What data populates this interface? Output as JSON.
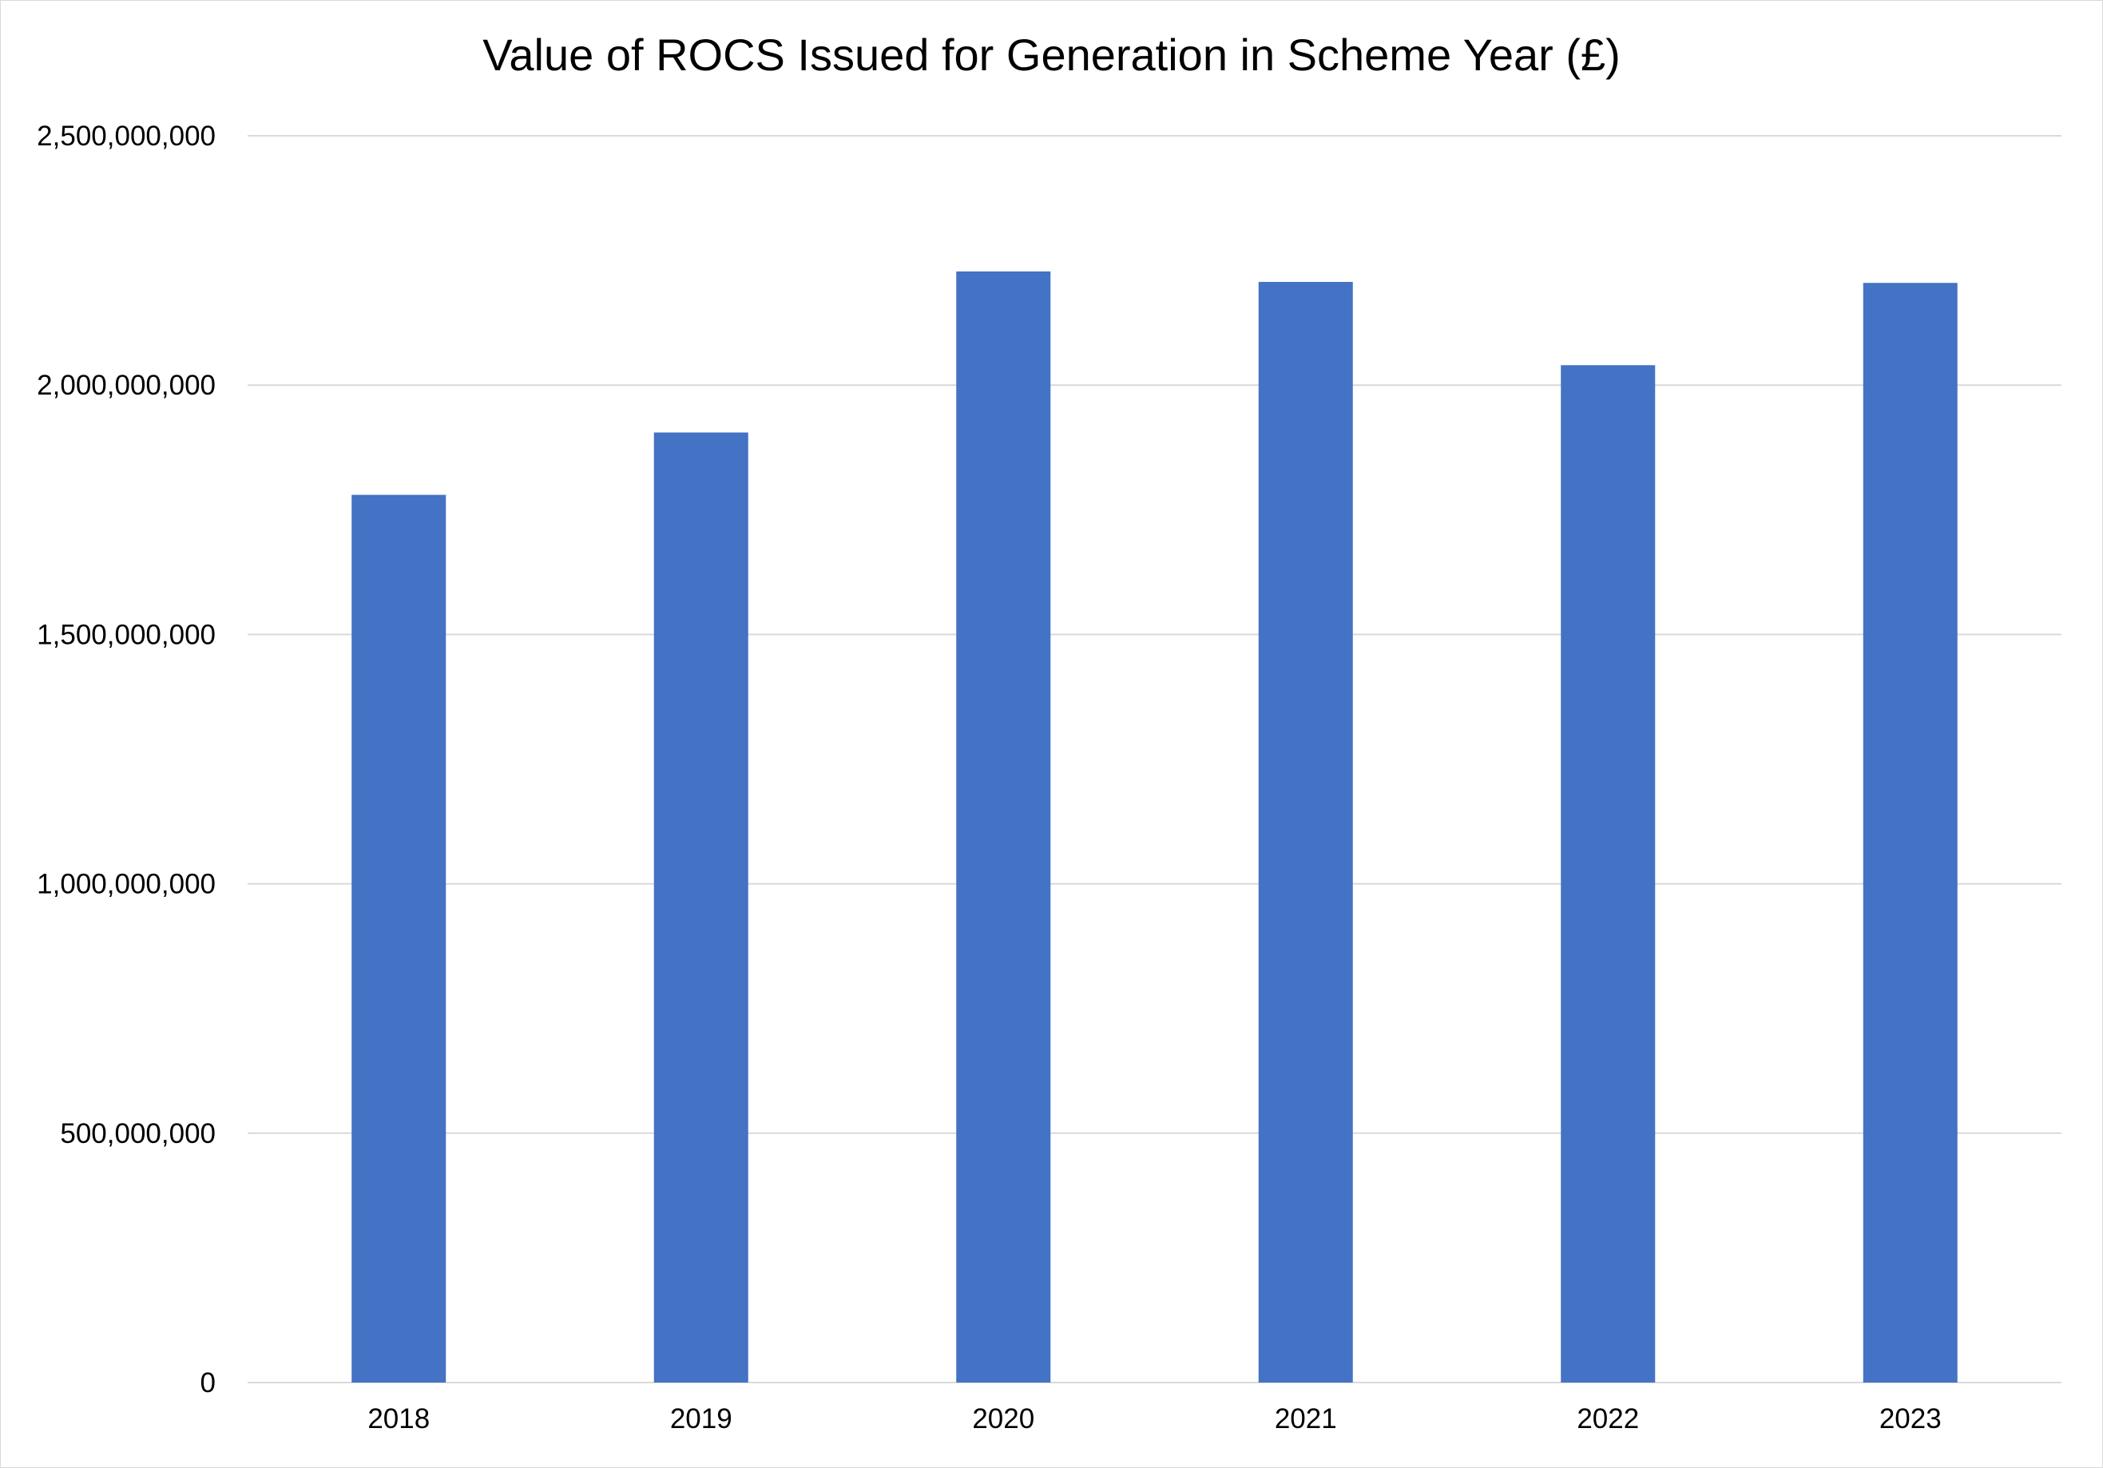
{
  "chart_data": {
    "type": "bar",
    "title": "Value of ROCS Issued for Generation in Scheme Year (£)",
    "xlabel": "",
    "ylabel": "",
    "categories": [
      "2018",
      "2019",
      "2020",
      "2021",
      "2022",
      "2023"
    ],
    "values": [
      1780000000,
      1905000000,
      2228000000,
      2207000000,
      2040000000,
      2205000000
    ],
    "ylim": [
      0,
      2500000000
    ],
    "yticks": [
      0,
      500000000,
      1000000000,
      1500000000,
      2000000000,
      2500000000
    ],
    "ytick_labels": [
      "0",
      "500,000,000",
      "1,000,000,000",
      "1,500,000,000",
      "2,000,000,000",
      "2,500,000,000"
    ],
    "grid": true,
    "legend": "none",
    "colors": {
      "bar": "#4472C4",
      "grid": "#d9d9d9",
      "axis": "#d9d9d9"
    }
  }
}
